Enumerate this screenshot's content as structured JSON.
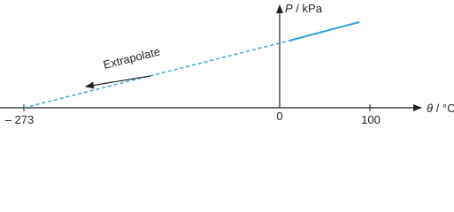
{
  "y_axis_label": {
    "symbol": "P",
    "unit": "/ kPa"
  },
  "x_axis_label": {
    "symbol": "θ",
    "unit": "/ °C"
  },
  "x_tick_labels": [
    "– 273",
    "0",
    "100"
  ],
  "annotation": "Extrapolate"
}
